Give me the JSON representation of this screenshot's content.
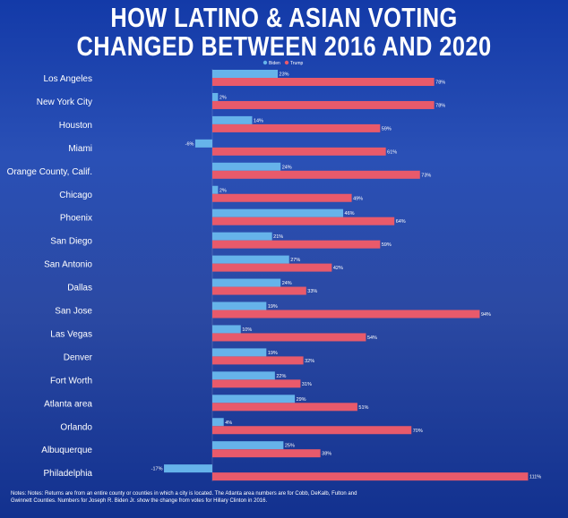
{
  "title_line1": "HOW LATINO & ASIAN VOTING",
  "title_line2": "CHANGED BETWEEN 2016 AND 2020",
  "notes": "Notes: Notes: Returns are from an entire county or counties in which a city is located. The Atlanta area numbers are for Cobb, DeKalb, Fulton and Gwinnett Counties. Numbers for Joseph R. Biden Jr. show the change from votes for Hillary Clinton in 2016.",
  "colors": {
    "biden": "#66b3ea",
    "trump": "#e85a6b",
    "text": "#ffffff"
  },
  "chart_data": {
    "type": "bar",
    "orientation": "horizontal",
    "categories": [
      "Los Angeles",
      "New York City",
      "Houston",
      "Miami",
      "Orange County, Calif.",
      "Chicago",
      "Phoenix",
      "San Diego",
      "San Antonio",
      "Dallas",
      "San Jose",
      "Las Vegas",
      "Denver",
      "Fort Worth",
      "Atlanta area",
      "Orlando",
      "Albuquerque",
      "Philadelphia"
    ],
    "series": [
      {
        "name": "Biden",
        "values": [
          23,
          2,
          14,
          -6,
          24,
          2,
          46,
          21,
          27,
          24,
          19,
          10,
          19,
          22,
          29,
          4,
          25,
          -17
        ],
        "labels": [
          "23%",
          "2%",
          "14%",
          "-6%",
          "24%",
          "2%",
          "46%",
          "21%",
          "27%",
          "24%",
          "19%",
          "10%",
          "19%",
          "22%",
          "29%",
          "4%",
          "25%",
          "-17%"
        ]
      },
      {
        "name": "Trump",
        "values": [
          78,
          78,
          59,
          61,
          73,
          49,
          64,
          59,
          42,
          33,
          94,
          54,
          32,
          31,
          51,
          70,
          38,
          111
        ],
        "labels": [
          "78%",
          "78%",
          "59%",
          "61%",
          "73%",
          "49%",
          "64%",
          "59%",
          "42%",
          "33%",
          "94%",
          "54%",
          "32%",
          "31%",
          "51%",
          "70%",
          "38%",
          "111%"
        ]
      }
    ],
    "legend_position": "top-center",
    "grid": false,
    "xlim": [
      -17,
      111
    ]
  }
}
